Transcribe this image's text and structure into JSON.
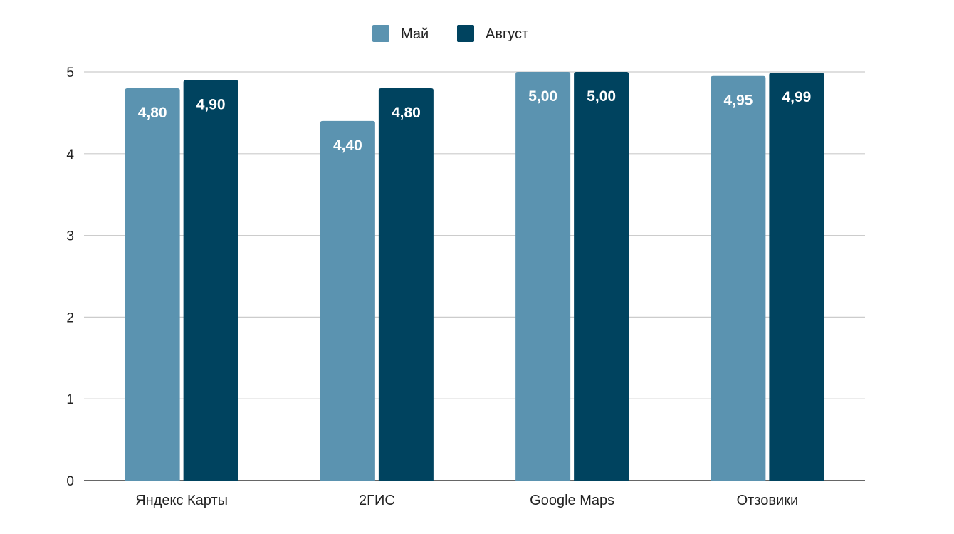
{
  "chart_data": {
    "type": "bar",
    "categories": [
      "Яндекс Карты",
      "2ГИС",
      "Google Maps",
      "Отзовики"
    ],
    "series": [
      {
        "name": "Май",
        "color": "#5b93b0",
        "values": [
          4.8,
          4.4,
          5.0,
          4.95
        ],
        "labels": [
          "4,80",
          "4,40",
          "5,00",
          "4,95"
        ]
      },
      {
        "name": "Август",
        "color": "#00435f",
        "values": [
          4.9,
          4.8,
          5.0,
          4.99
        ],
        "labels": [
          "4,90",
          "4,80",
          "5,00",
          "4,99"
        ]
      }
    ],
    "ylim": [
      0,
      5
    ],
    "yticks": [
      "0",
      "1",
      "2",
      "3",
      "4",
      "5"
    ],
    "grid": true,
    "legend": "top-center"
  }
}
